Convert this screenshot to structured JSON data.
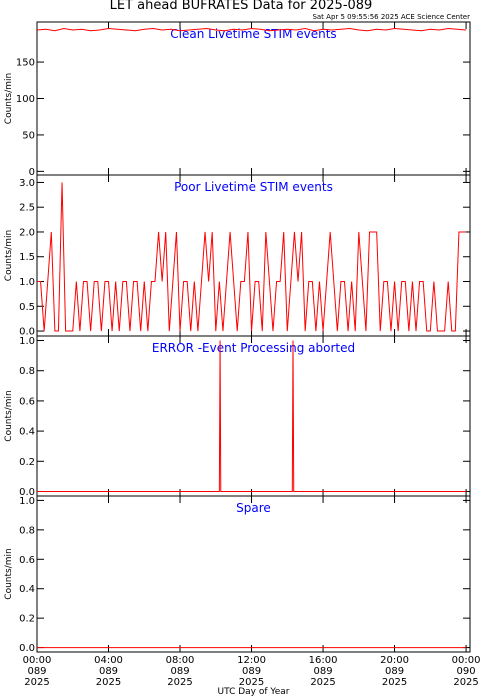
{
  "title": "LET ahead BUFRATES Data for 2025-089",
  "subtitle": "Sat Apr  5 09:55:56 2025 ACE Science Center",
  "chart_data": [
    {
      "type": "line",
      "title": "Clean Livetime STIM events",
      "title_color": "#0000ff",
      "ylabel": "Counts/min",
      "xlim": [
        0,
        24.22
      ],
      "xticks": [
        0,
        4,
        8,
        12,
        16,
        20,
        24
      ],
      "ylim": [
        -5,
        205
      ],
      "yticks": [
        0,
        50,
        100,
        150
      ],
      "x": [
        0,
        0.5,
        1,
        1.5,
        2,
        2.5,
        3,
        3.5,
        4,
        4.5,
        5,
        5.5,
        6,
        6.5,
        7,
        7.5,
        8,
        8.5,
        9,
        9.5,
        10,
        10.5,
        11,
        11.5,
        12,
        12.5,
        13,
        13.5,
        14,
        14.5,
        15,
        15.5,
        16,
        16.5,
        17,
        17.5,
        18,
        18.5,
        19,
        19.5,
        20,
        20.5,
        21,
        21.5,
        22,
        22.5,
        23,
        23.5,
        24
      ],
      "series": [
        {
          "name": "Clean Livetime STIM events",
          "color": "#ff0000",
          "values": [
            194,
            195,
            193,
            196,
            194,
            195,
            193,
            194,
            196,
            195,
            194,
            193,
            195,
            196,
            194,
            195,
            193,
            194,
            195,
            196,
            194,
            193,
            195,
            194,
            196,
            195,
            193,
            194,
            195,
            194,
            196,
            193,
            195,
            194,
            195,
            196,
            194,
            193,
            195,
            194,
            196,
            195,
            194,
            193,
            195,
            194,
            196,
            195,
            194
          ]
        }
      ]
    },
    {
      "type": "line",
      "title": "Poor Livetime STIM events",
      "title_color": "#0000ff",
      "ylabel": "Counts/min",
      "xlim": [
        0,
        24.22
      ],
      "xticks": [
        0,
        4,
        8,
        12,
        16,
        20,
        24
      ],
      "ylim": [
        -0.1,
        3.15
      ],
      "yticks": [
        {
          "value": 0,
          "label": "0.0"
        },
        0.5,
        {
          "value": 1,
          "label": "1.0"
        },
        1.5,
        {
          "value": 2,
          "label": "2.0"
        },
        2.5,
        {
          "value": 3,
          "label": "3.0"
        }
      ],
      "x": [
        0,
        0.2,
        0.4,
        0.6,
        0.8,
        1,
        1.2,
        1.4,
        1.6,
        1.8,
        2,
        2.2,
        2.4,
        2.6,
        2.8,
        3,
        3.2,
        3.4,
        3.6,
        3.8,
        4,
        4.2,
        4.4,
        4.6,
        4.8,
        5,
        5.2,
        5.4,
        5.6,
        5.8,
        6,
        6.2,
        6.4,
        6.6,
        6.8,
        7,
        7.2,
        7.4,
        7.6,
        7.8,
        8,
        8.2,
        8.4,
        8.6,
        8.8,
        9,
        9.2,
        9.4,
        9.6,
        9.8,
        10,
        10.2,
        10.4,
        10.6,
        10.8,
        11,
        11.2,
        11.4,
        11.6,
        11.8,
        12,
        12.2,
        12.4,
        12.6,
        12.8,
        13,
        13.2,
        13.4,
        13.6,
        13.8,
        14,
        14.2,
        14.4,
        14.6,
        14.8,
        15,
        15.2,
        15.4,
        15.6,
        15.8,
        16,
        16.2,
        16.4,
        16.6,
        16.8,
        17,
        17.2,
        17.4,
        17.6,
        17.8,
        18,
        18.2,
        18.4,
        18.6,
        18.8,
        19,
        19.2,
        19.4,
        19.6,
        19.8,
        20,
        20.2,
        20.4,
        20.6,
        20.8,
        21,
        21.2,
        21.4,
        21.6,
        21.8,
        22,
        22.2,
        22.4,
        22.6,
        22.8,
        23,
        23.2,
        23.4,
        23.6,
        23.8,
        24
      ],
      "series": [
        {
          "name": "Poor Livetime STIM events",
          "color": "#ff0000",
          "values": [
            1,
            1,
            0,
            1,
            2,
            0,
            0,
            3,
            0,
            0,
            0,
            1,
            0,
            1,
            1,
            0,
            1,
            1,
            0,
            1,
            1,
            0,
            1,
            0,
            1,
            1,
            0,
            1,
            1,
            0,
            1,
            0,
            1,
            1,
            2,
            1,
            2,
            0,
            1,
            2,
            0,
            1,
            1,
            0,
            1,
            0,
            1,
            2,
            1,
            2,
            0,
            1,
            0,
            1,
            2,
            1,
            0,
            1,
            1,
            2,
            0,
            1,
            1,
            0,
            2,
            1,
            0,
            1,
            1,
            2,
            0,
            1,
            2,
            1,
            2,
            0,
            1,
            1,
            0,
            1,
            0,
            1,
            2,
            1,
            0,
            1,
            1,
            0,
            1,
            0,
            2,
            1,
            0,
            2,
            2,
            2,
            0,
            1,
            1,
            0,
            1,
            0,
            1,
            1,
            0,
            1,
            0,
            1,
            1,
            0,
            0,
            1,
            0,
            0,
            0,
            1,
            0,
            0,
            2,
            2,
            2
          ]
        }
      ]
    },
    {
      "type": "line",
      "title": "ERROR -Event Processing aborted",
      "title_color": "#0000ff",
      "ylabel": "Counts/min",
      "xlim": [
        0,
        24.22
      ],
      "xticks": [
        0,
        4,
        8,
        12,
        16,
        20,
        24
      ],
      "ylim": [
        -0.03,
        1.03
      ],
      "yticks": [
        {
          "value": 0,
          "label": "0.0"
        },
        0.2,
        0.4,
        0.6,
        0.8,
        {
          "value": 1,
          "label": "1.0"
        }
      ],
      "x": [
        0,
        10.2,
        10.24,
        10.28,
        14.28,
        14.32,
        14.36,
        24
      ],
      "series": [
        {
          "name": "ERROR -Event Processing aborted",
          "color": "#ff0000",
          "values": [
            0,
            0,
            1,
            0,
            0,
            1,
            0,
            0
          ]
        }
      ]
    },
    {
      "type": "line",
      "title": "Spare",
      "title_color": "#0000ff",
      "ylabel": "Counts/min",
      "xlabel": "UTC Day of Year",
      "xlim": [
        0,
        24.22
      ],
      "xticks": [
        {
          "value": 0,
          "label": "00:00\n089\n2025"
        },
        {
          "value": 4,
          "label": "04:00\n089\n2025"
        },
        {
          "value": 8,
          "label": "08:00\n089\n2025"
        },
        {
          "value": 12,
          "label": "12:00\n089\n2025"
        },
        {
          "value": 16,
          "label": "16:00\n089\n2025"
        },
        {
          "value": 20,
          "label": "20:00\n089\n2025"
        },
        {
          "value": 24,
          "label": "00:00\n090\n2025"
        }
      ],
      "ylim": [
        -0.03,
        1.03
      ],
      "yticks": [
        {
          "value": 0,
          "label": "0.0"
        },
        0.2,
        0.4,
        0.6,
        0.8,
        {
          "value": 1,
          "label": "1.0"
        }
      ],
      "x": [
        0,
        24
      ],
      "series": [
        {
          "name": "Spare",
          "color": "#ff0000",
          "values": [
            0,
            0
          ]
        }
      ]
    }
  ]
}
